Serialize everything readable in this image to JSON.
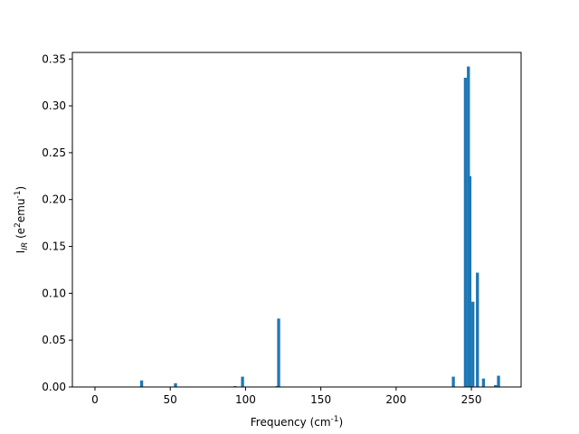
{
  "chart_data": {
    "type": "bar",
    "xlabel": "Frequency (cm$^{-1}$)",
    "ylabel": "I$_{IR}$ (e$^2$emu$^{-1}$)",
    "title": "",
    "xlim": [
      -15,
      283
    ],
    "ylim": [
      0,
      0.357
    ],
    "xticks": [
      "0",
      "50",
      "100",
      "150",
      "200",
      "250"
    ],
    "yticks": [
      "0.00",
      "0.05",
      "0.10",
      "0.15",
      "0.20",
      "0.25",
      "0.30",
      "0.35"
    ],
    "bar_width": 2.0,
    "bar_color": "#1f77b4",
    "grid": false,
    "series": [
      {
        "x": [
          31.0,
          53.5,
          93.0,
          98.0,
          121.0,
          122.0,
          238.0,
          246.0,
          248.0,
          249.0,
          251.0,
          254.0,
          258.0,
          266.0,
          268.0
        ],
        "values": [
          0.007,
          0.004,
          0.001,
          0.011,
          0.001,
          0.073,
          0.011,
          0.33,
          0.342,
          0.225,
          0.091,
          0.122,
          0.009,
          0.002,
          0.012
        ]
      }
    ]
  }
}
